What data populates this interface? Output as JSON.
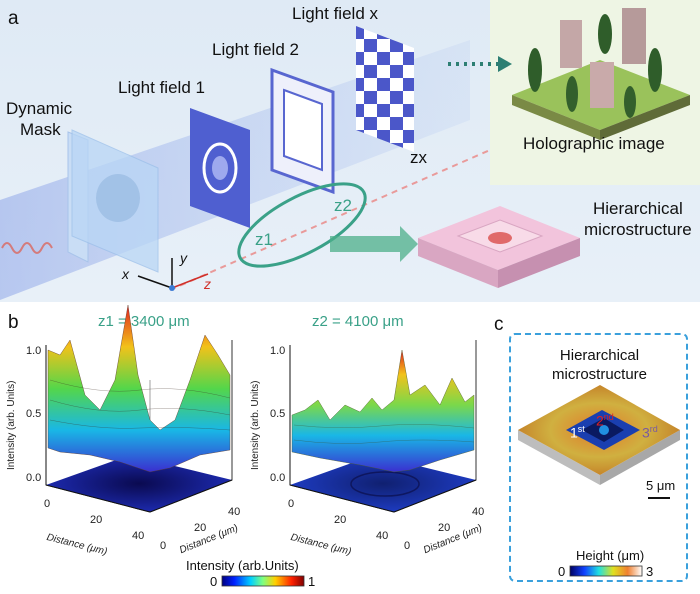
{
  "panel_a": {
    "letter": "a",
    "dynamic_mask": [
      "Dynamic",
      "Mask"
    ],
    "light_field_1": "Light field 1",
    "light_field_2": "Light field 2",
    "light_field_x": "Light field x",
    "z_x": "zx",
    "z1": "z1",
    "z2": "z2",
    "holographic_image": "Holographic image",
    "hierarchical_microstructure": [
      "Hierarchical",
      "microstructure"
    ],
    "axis_x": "x",
    "axis_y": "y",
    "axis_z": "z"
  },
  "panel_b": {
    "letter": "b",
    "plot1_title": "z1 = 3400 μm",
    "plot2_title": "z2 = 4100 μm",
    "intensity_ticks": [
      "1.0",
      "0.5",
      "0.0"
    ],
    "intensity_label": "Intensity (arb. Units)",
    "distance_label": "Distance (μm)",
    "distance_ticks": [
      "0",
      "20",
      "40"
    ],
    "colorbar_label": "Intensity (arb.Units)",
    "colorbar_min": "0",
    "colorbar_max": "1"
  },
  "panel_c": {
    "letter": "c",
    "title": [
      "Hierarchical",
      "microstructure"
    ],
    "level_1": "1",
    "level_1_sup": "st",
    "level_2": "2",
    "level_2_sup": "nd",
    "level_3": "3",
    "level_3_sup": "rd",
    "scale_bar": "5 μm",
    "height_label": "Height (μm)",
    "height_min": "0",
    "height_max": "3"
  },
  "colors": {
    "teal": "#3aa188",
    "beam": "#9fb8ee",
    "dash_border": "#3aa0dc",
    "pink_block": "#f2c4dc"
  }
}
